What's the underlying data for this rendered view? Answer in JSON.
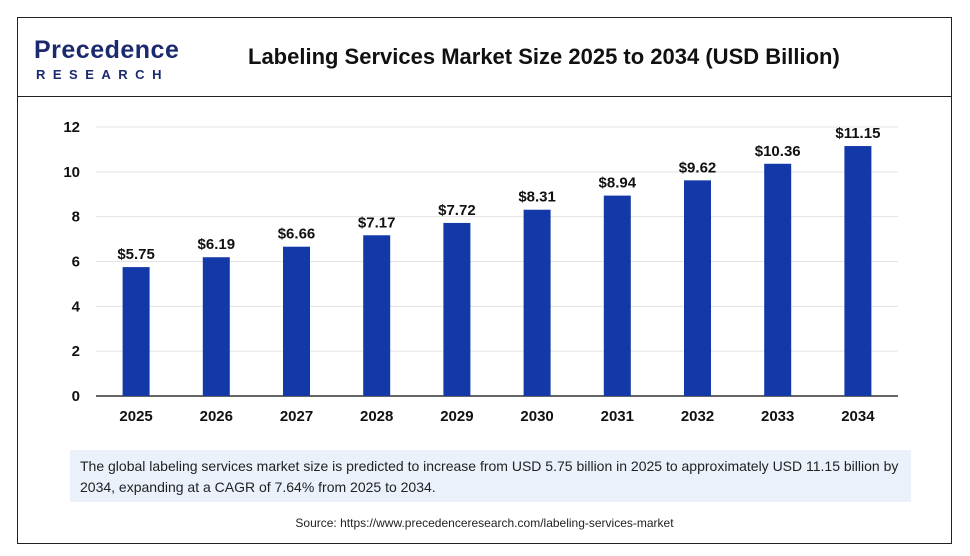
{
  "logo": {
    "line1": "Precedence",
    "line2": "RESEARCH"
  },
  "title": "Labeling Services Market Size 2025 to 2034 (USD Billion)",
  "note": "The global labeling services market size is predicted to increase from USD 5.75 billion in 2025 to approximately USD 11.15 billion by 2034, expanding at a CAGR of 7.64% from 2025 to 2034.",
  "source": "Source: https://www.precedenceresearch.com/labeling-services-market",
  "colors": {
    "bar": "#1339a8",
    "grid": "#e3e3e3",
    "brand": "#1b2a6e",
    "note_bg": "#eaf1fb"
  },
  "chart_data": {
    "type": "bar",
    "categories": [
      "2025",
      "2026",
      "2027",
      "2028",
      "2029",
      "2030",
      "2031",
      "2032",
      "2033",
      "2034"
    ],
    "values": [
      5.75,
      6.19,
      6.66,
      7.17,
      7.72,
      8.31,
      8.94,
      9.62,
      10.36,
      11.15
    ],
    "data_labels": [
      "$5.75",
      "$6.19",
      "$6.66",
      "$7.17",
      "$7.72",
      "$8.31",
      "$8.94",
      "$9.62",
      "$10.36",
      "$11.15"
    ],
    "ylim": [
      0,
      12
    ],
    "yticks": [
      0,
      2,
      4,
      6,
      8,
      10,
      12
    ],
    "grid": true,
    "xlabel": "",
    "ylabel": ""
  }
}
